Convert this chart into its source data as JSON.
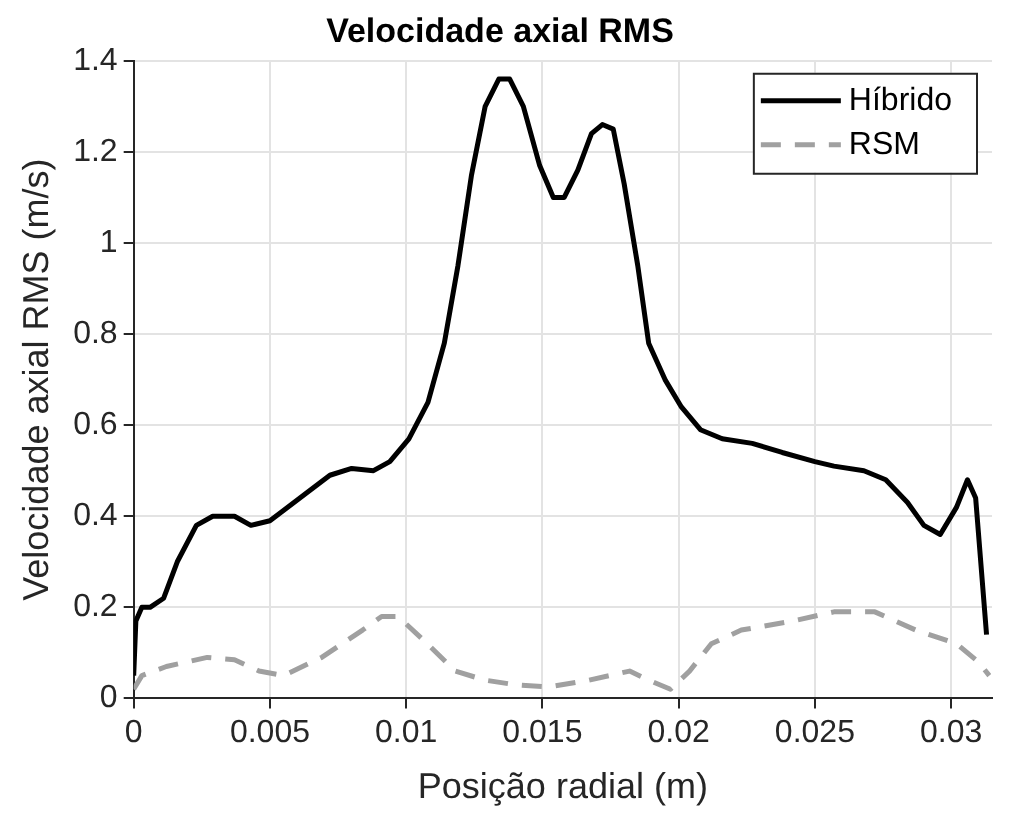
{
  "chart_data": {
    "type": "line",
    "title": "Velocidade axial RMS",
    "xlabel": "Posição radial (m)",
    "ylabel": "Velocidade axial RMS (m/s)",
    "xlim": [
      0,
      0.0315
    ],
    "xticks": [
      0,
      0.005,
      0.01,
      0.015,
      0.02,
      0.025,
      0.03
    ],
    "ylim": [
      0,
      1.4
    ],
    "yticks": [
      0,
      0.2,
      0.4,
      0.6,
      0.8,
      1,
      1.2,
      1.4
    ],
    "grid": true,
    "legend": "top right",
    "marker": "none",
    "series": [
      {
        "name": "Híbrido",
        "color": "#000000",
        "line_style": "solid",
        "x": [
          0,
          8e-05,
          0.0003,
          0.0006,
          0.0011,
          0.0016,
          0.0023,
          0.0029,
          0.0037,
          0.0043,
          0.005,
          0.0061,
          0.0072,
          0.008,
          0.0088,
          0.0094,
          0.0101,
          0.0108,
          0.0114,
          0.0119,
          0.0124,
          0.0129,
          0.0134,
          0.0138,
          0.0143,
          0.0149,
          0.0154,
          0.0158,
          0.0163,
          0.0168,
          0.0172,
          0.0176,
          0.018,
          0.0185,
          0.0189,
          0.0195,
          0.0201,
          0.0208,
          0.0216,
          0.0227,
          0.0238,
          0.025,
          0.0257,
          0.0268,
          0.0276,
          0.0284,
          0.029,
          0.0296,
          0.0302,
          0.0306,
          0.0309,
          0.0313
        ],
        "values": [
          0.05,
          0.17,
          0.2,
          0.2,
          0.22,
          0.3,
          0.38,
          0.4,
          0.4,
          0.38,
          0.39,
          0.44,
          0.49,
          0.505,
          0.5,
          0.52,
          0.57,
          0.65,
          0.78,
          0.95,
          1.15,
          1.3,
          1.36,
          1.36,
          1.3,
          1.17,
          1.1,
          1.1,
          1.16,
          1.24,
          1.26,
          1.25,
          1.13,
          0.95,
          0.78,
          0.7,
          0.64,
          0.59,
          0.57,
          0.56,
          0.54,
          0.52,
          0.51,
          0.5,
          0.48,
          0.43,
          0.38,
          0.36,
          0.42,
          0.48,
          0.44,
          0.14
        ]
      },
      {
        "name": "RSM",
        "color": "#a0a0a0",
        "line_style": "dashed",
        "x": [
          0,
          0.0003,
          0.0012,
          0.0027,
          0.0037,
          0.0046,
          0.0055,
          0.0069,
          0.0084,
          0.0091,
          0.0097,
          0.0106,
          0.0118,
          0.0129,
          0.014,
          0.0152,
          0.0167,
          0.0182,
          0.0189,
          0.0197,
          0.0204,
          0.0212,
          0.0223,
          0.0242,
          0.0257,
          0.0272,
          0.0287,
          0.0302,
          0.031,
          0.0314
        ],
        "values": [
          0.02,
          0.05,
          0.07,
          0.09,
          0.085,
          0.06,
          0.05,
          0.09,
          0.15,
          0.18,
          0.18,
          0.13,
          0.06,
          0.04,
          0.03,
          0.025,
          0.04,
          0.06,
          0.04,
          0.02,
          0.06,
          0.12,
          0.15,
          0.17,
          0.19,
          0.19,
          0.15,
          0.12,
          0.08,
          0.05
        ]
      }
    ]
  }
}
